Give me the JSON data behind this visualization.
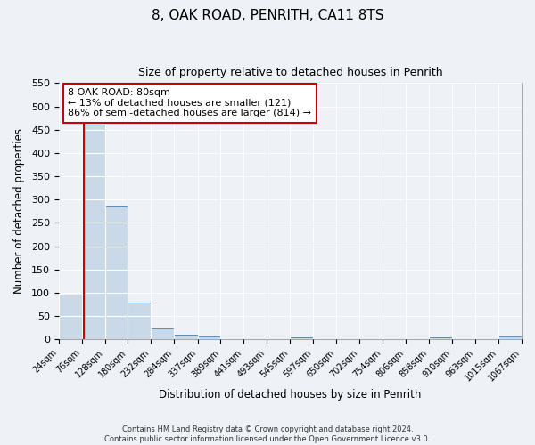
{
  "title": "8, OAK ROAD, PENRITH, CA11 8TS",
  "subtitle": "Size of property relative to detached houses in Penrith",
  "xlabel": "Distribution of detached houses by size in Penrith",
  "ylabel": "Number of detached properties",
  "bin_edges": [
    24,
    76,
    128,
    180,
    232,
    284,
    337,
    389,
    441,
    493,
    545,
    597,
    650,
    702,
    754,
    806,
    858,
    910,
    963,
    1015,
    1067
  ],
  "bin_labels": [
    "24sqm",
    "76sqm",
    "128sqm",
    "180sqm",
    "232sqm",
    "284sqm",
    "337sqm",
    "389sqm",
    "441sqm",
    "493sqm",
    "545sqm",
    "597sqm",
    "650sqm",
    "702sqm",
    "754sqm",
    "806sqm",
    "858sqm",
    "910sqm",
    "963sqm",
    "1015sqm",
    "1067sqm"
  ],
  "bar_heights": [
    95,
    460,
    285,
    78,
    24,
    10,
    7,
    0,
    0,
    0,
    5,
    0,
    0,
    0,
    0,
    0,
    5,
    0,
    0,
    7
  ],
  "bar_color": "#c9d9e8",
  "bar_edgecolor": "#5a8ab5",
  "property_line_x": 80,
  "property_line_color": "#cc0000",
  "ylim": [
    0,
    550
  ],
  "yticks": [
    0,
    50,
    100,
    150,
    200,
    250,
    300,
    350,
    400,
    450,
    500,
    550
  ],
  "annotation_title": "8 OAK ROAD: 80sqm",
  "annotation_line1": "← 13% of detached houses are smaller (121)",
  "annotation_line2": "86% of semi-detached houses are larger (814) →",
  "annotation_box_color": "#ffffff",
  "annotation_box_edgecolor": "#cc0000",
  "footer_line1": "Contains HM Land Registry data © Crown copyright and database right 2024.",
  "footer_line2": "Contains public sector information licensed under the Open Government Licence v3.0.",
  "background_color": "#eef2f7",
  "plot_bg_color": "#eef2f7",
  "grid_color": "#ffffff"
}
